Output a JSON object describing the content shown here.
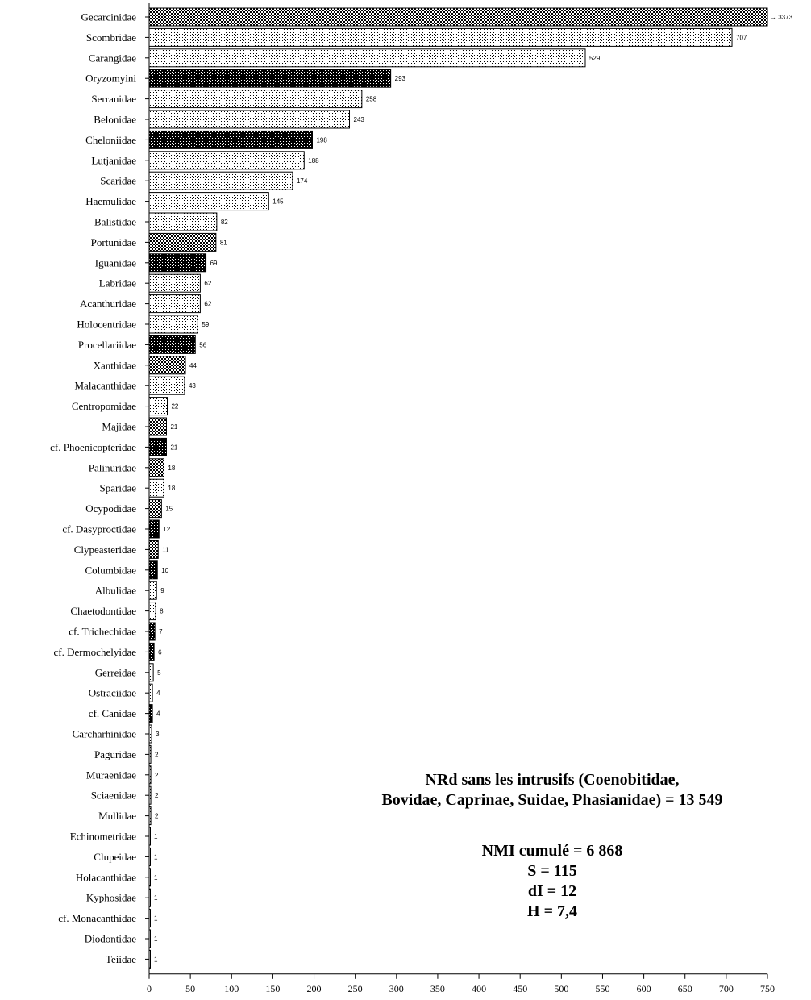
{
  "chart_data": {
    "type": "bar",
    "orientation": "horizontal",
    "categories": [
      "Gecarcinidae",
      "Scombridae",
      "Carangidae",
      "Oryzomyini",
      "Serranidae",
      "Belonidae",
      "Cheloniidae",
      "Lutjanidae",
      "Scaridae",
      "Haemulidae",
      "Balistidae",
      "Portunidae",
      "Iguanidae",
      "Labridae",
      "Acanthuridae",
      "Holocentridae",
      "Procellariidae",
      "Xanthidae",
      "Malacanthidae",
      "Centropomidae",
      "Majidae",
      "cf. Phoenicopteridae",
      "Palinuridae",
      "Sparidae",
      "Ocypodidae",
      "cf. Dasyproctidae",
      "Clypeasteridae",
      "Columbidae",
      "Albulidae",
      "Chaetodontidae",
      "cf. Trichechidae",
      "cf. Dermochelyidae",
      "Gerreidae",
      "Ostraciidae",
      "cf. Canidae",
      "Carcharhinidae",
      "Paguridae",
      "Muraenidae",
      "Sciaenidae",
      "Mullidae",
      "Echinometridae",
      "Clupeidae",
      "Holacanthidae",
      "Kyphosidae",
      "cf. Monacanthidae",
      "Diodontidae",
      "Teiidae"
    ],
    "values": [
      3373,
      707,
      529,
      293,
      258,
      243,
      198,
      188,
      174,
      145,
      82,
      81,
      69,
      62,
      62,
      59,
      56,
      44,
      43,
      22,
      21,
      21,
      18,
      18,
      15,
      12,
      11,
      10,
      9,
      8,
      7,
      6,
      5,
      4,
      4,
      3,
      2,
      2,
      2,
      2,
      1,
      1,
      1,
      1,
      1,
      1,
      1
    ],
    "value_labels": [
      "3373",
      "707",
      "529",
      "293",
      "258",
      "243",
      "198",
      "188",
      "174",
      "145",
      "82",
      "81",
      "69",
      "62",
      "62",
      "59",
      "56",
      "44",
      "43",
      "22",
      "21",
      "21",
      "18",
      "18",
      "15",
      "12",
      "11",
      "10",
      "9",
      "8",
      "7",
      "6",
      "5",
      "4",
      "4",
      "3",
      "2",
      "2",
      "2",
      "2",
      "1",
      "1",
      "1",
      "1",
      "1",
      "1",
      "1"
    ],
    "patterns": [
      "dense",
      "sparse",
      "sparse",
      "dark",
      "sparse",
      "sparse",
      "dark",
      "sparse",
      "sparse",
      "sparse",
      "sparse",
      "dense",
      "dark",
      "sparse",
      "sparse",
      "sparse",
      "dark",
      "dense",
      "sparse",
      "sparse",
      "dense",
      "dark",
      "dense",
      "sparse",
      "dense",
      "dark",
      "dense",
      "dark",
      "sparse",
      "sparse",
      "dark",
      "dark",
      "sparse",
      "sparse",
      "dark",
      "sparse",
      "sparse",
      "sparse",
      "sparse",
      "sparse",
      "sparse",
      "sparse",
      "sparse",
      "sparse",
      "sparse",
      "sparse",
      "sparse"
    ],
    "xlim": [
      0,
      750
    ],
    "x_ticks": [
      0,
      50,
      100,
      150,
      200,
      250,
      300,
      350,
      400,
      450,
      500,
      550,
      600,
      650,
      700,
      750
    ],
    "title": "",
    "xlabel": "",
    "ylabel": "",
    "grid": false,
    "legend": "none"
  },
  "annotation": {
    "line1": "NRd sans les intrusifs (Coenobitidae,",
    "line2": "Bovidae, Caprinae, Suidae, Phasianidae) = 13 549",
    "line3": "NMI cumulé = 6 868",
    "line4": "S = 115",
    "line5": "dI = 12",
    "line6": "H = 7,4"
  }
}
